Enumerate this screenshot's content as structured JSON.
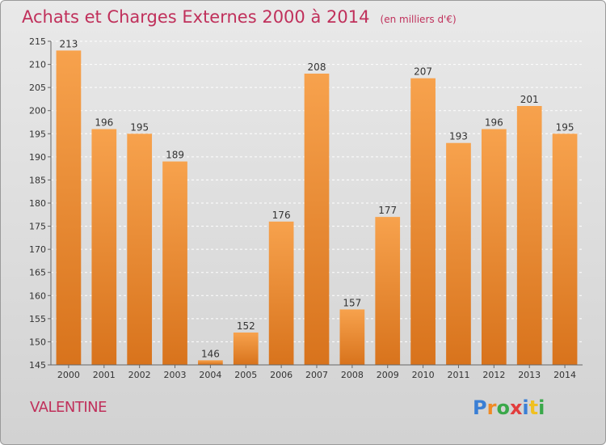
{
  "header": {
    "title": "Achats et Charges Externes 2000 à 2014",
    "unit": "(en milliers d'€)"
  },
  "footer": {
    "commune": "VALENTINE",
    "brand_letters": [
      "P",
      "r",
      "o",
      "x",
      "i",
      "t",
      "i"
    ],
    "brand_colors": [
      "#3a7fd5",
      "#f08a24",
      "#3aa84a",
      "#e23d3d",
      "#3a7fd5",
      "#f0c020",
      "#3aa84a"
    ]
  },
  "colors": {
    "bar_light": "#f7a24d",
    "bar_dark": "#d8731c",
    "title": "#c0305b"
  },
  "chart_data": {
    "type": "bar",
    "categories": [
      "2000",
      "2001",
      "2002",
      "2003",
      "2004",
      "2005",
      "2006",
      "2007",
      "2008",
      "2009",
      "2010",
      "2011",
      "2012",
      "2013",
      "2014"
    ],
    "values": [
      213,
      196,
      195,
      189,
      146,
      152,
      176,
      208,
      157,
      177,
      207,
      193,
      196,
      201,
      195
    ],
    "title": "Achats et Charges Externes 2000 à 2014",
    "ylim": [
      145,
      215
    ],
    "yticks": [
      145,
      150,
      155,
      160,
      165,
      170,
      175,
      180,
      185,
      190,
      195,
      200,
      205,
      210,
      215
    ],
    "grid": true,
    "data_labels": true
  }
}
